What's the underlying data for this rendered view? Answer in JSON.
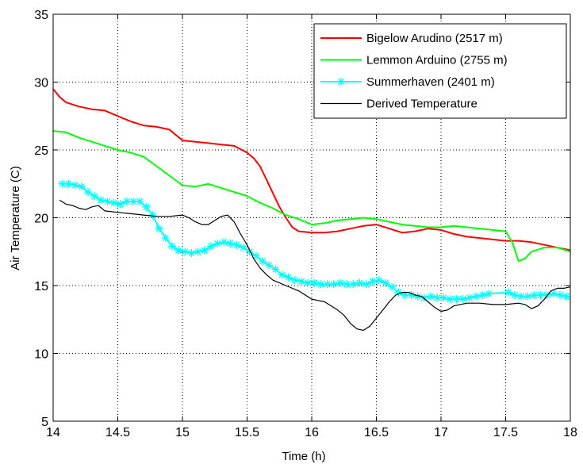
{
  "chart_data": {
    "type": "line",
    "xlabel": "Time (h)",
    "ylabel": "Air Temperature (C)",
    "xlim": [
      14,
      18
    ],
    "ylim": [
      5,
      35
    ],
    "x_ticks": [
      14,
      14.5,
      15,
      15.5,
      16,
      16.5,
      17,
      17.5,
      18
    ],
    "y_ticks": [
      5,
      10,
      15,
      20,
      25,
      30,
      35
    ],
    "grid": true,
    "legend_position": "top-right",
    "series": [
      {
        "name": "Bigelow Arudino (2517 m)",
        "color": "#ff0000",
        "marker": "none",
        "x": [
          14.0,
          14.05,
          14.1,
          14.2,
          14.3,
          14.4,
          14.5,
          14.6,
          14.7,
          14.8,
          14.9,
          14.95,
          15.0,
          15.1,
          15.2,
          15.3,
          15.4,
          15.5,
          15.55,
          15.6,
          15.65,
          15.7,
          15.75,
          15.8,
          15.85,
          15.9,
          16.0,
          16.1,
          16.2,
          16.3,
          16.4,
          16.5,
          16.6,
          16.7,
          16.8,
          16.9,
          17.0,
          17.1,
          17.2,
          17.3,
          17.4,
          17.5,
          17.6,
          17.7,
          17.8,
          17.9,
          18.0
        ],
        "y": [
          29.5,
          28.9,
          28.5,
          28.2,
          28.0,
          27.9,
          27.5,
          27.1,
          26.8,
          26.7,
          26.5,
          26.1,
          25.7,
          25.6,
          25.5,
          25.4,
          25.3,
          24.8,
          24.4,
          23.8,
          22.8,
          21.8,
          20.8,
          20.0,
          19.3,
          19.0,
          18.9,
          18.9,
          19.0,
          19.2,
          19.4,
          19.5,
          19.2,
          18.9,
          19.0,
          19.2,
          19.1,
          18.8,
          18.6,
          18.5,
          18.4,
          18.3,
          18.3,
          18.2,
          18.0,
          17.8,
          17.6
        ]
      },
      {
        "name": "Lemmon Arduino (2755 m)",
        "color": "#00ff00",
        "marker": "none",
        "x": [
          14.0,
          14.1,
          14.2,
          14.3,
          14.4,
          14.5,
          14.6,
          14.7,
          14.8,
          14.9,
          15.0,
          15.1,
          15.2,
          15.3,
          15.4,
          15.5,
          15.6,
          15.7,
          15.8,
          15.9,
          16.0,
          16.1,
          16.2,
          16.3,
          16.4,
          16.5,
          16.6,
          16.7,
          16.8,
          16.9,
          17.0,
          17.1,
          17.2,
          17.3,
          17.4,
          17.5,
          17.55,
          17.6,
          17.65,
          17.7,
          17.8,
          17.9,
          18.0
        ],
        "y": [
          26.4,
          26.3,
          25.9,
          25.6,
          25.3,
          25.0,
          24.8,
          24.5,
          23.8,
          23.1,
          22.4,
          22.3,
          22.5,
          22.2,
          21.9,
          21.6,
          21.1,
          20.7,
          20.2,
          19.9,
          19.5,
          19.6,
          19.8,
          19.9,
          20.0,
          19.9,
          19.7,
          19.5,
          19.4,
          19.3,
          19.3,
          19.4,
          19.3,
          19.2,
          19.1,
          19.0,
          18.2,
          16.8,
          17.0,
          17.5,
          17.8,
          17.8,
          17.5
        ]
      },
      {
        "name": "Summerhaven (2401 m)",
        "color": "#00ffff",
        "marker": "*",
        "x": [
          14.07,
          14.12,
          14.17,
          14.22,
          14.27,
          14.32,
          14.37,
          14.42,
          14.47,
          14.52,
          14.57,
          14.62,
          14.67,
          14.72,
          14.77,
          14.82,
          14.87,
          14.92,
          14.97,
          15.02,
          15.07,
          15.12,
          15.17,
          15.22,
          15.27,
          15.32,
          15.37,
          15.42,
          15.47,
          15.52,
          15.57,
          15.62,
          15.67,
          15.72,
          15.77,
          15.82,
          15.87,
          15.92,
          15.97,
          16.02,
          16.07,
          16.12,
          16.17,
          16.22,
          16.27,
          16.32,
          16.37,
          16.42,
          16.47,
          16.52,
          16.57,
          16.62,
          16.67,
          16.72,
          16.77,
          16.82,
          16.87,
          16.92,
          16.97,
          17.02,
          17.07,
          17.12,
          17.17,
          17.22,
          17.27,
          17.32,
          17.37,
          17.52,
          17.57,
          17.62,
          17.67,
          17.72,
          17.77,
          17.82,
          17.87,
          17.92,
          17.97
        ],
        "y": [
          22.5,
          22.5,
          22.4,
          22.3,
          21.9,
          21.6,
          21.3,
          21.2,
          21.1,
          21.0,
          21.2,
          21.2,
          21.2,
          20.8,
          20.2,
          19.2,
          18.5,
          17.9,
          17.6,
          17.5,
          17.4,
          17.5,
          17.6,
          17.9,
          18.1,
          18.2,
          18.1,
          18.0,
          17.8,
          17.5,
          17.2,
          16.8,
          16.5,
          16.2,
          15.8,
          15.6,
          15.4,
          15.3,
          15.2,
          15.2,
          15.1,
          15.1,
          15.1,
          15.2,
          15.1,
          15.1,
          15.2,
          15.1,
          15.3,
          15.4,
          15.2,
          14.9,
          14.5,
          14.3,
          14.3,
          14.2,
          14.1,
          14.2,
          14.1,
          14.1,
          14.0,
          14.0,
          14.0,
          14.1,
          14.2,
          14.3,
          14.4,
          14.5,
          14.3,
          14.2,
          14.2,
          14.3,
          14.3,
          14.3,
          14.4,
          14.3,
          14.2
        ]
      },
      {
        "name": "Derived Temperature",
        "color": "#000000",
        "marker": "none",
        "x": [
          14.05,
          14.1,
          14.15,
          14.2,
          14.25,
          14.3,
          14.35,
          14.4,
          14.5,
          14.6,
          14.7,
          14.8,
          14.9,
          15.0,
          15.05,
          15.1,
          15.15,
          15.2,
          15.25,
          15.3,
          15.35,
          15.4,
          15.45,
          15.5,
          15.55,
          15.6,
          15.65,
          15.7,
          15.8,
          15.9,
          16.0,
          16.05,
          16.1,
          16.15,
          16.2,
          16.25,
          16.3,
          16.35,
          16.4,
          16.45,
          16.5,
          16.55,
          16.6,
          16.65,
          16.7,
          16.75,
          16.8,
          16.85,
          16.9,
          16.95,
          17.0,
          17.05,
          17.1,
          17.15,
          17.2,
          17.3,
          17.4,
          17.5,
          17.6,
          17.65,
          17.7,
          17.75,
          17.8,
          17.85,
          17.9,
          17.95,
          18.0
        ],
        "y": [
          21.3,
          21.0,
          20.9,
          20.7,
          20.6,
          20.8,
          20.9,
          20.5,
          20.4,
          20.3,
          20.2,
          20.1,
          20.1,
          20.2,
          20.0,
          19.7,
          19.5,
          19.5,
          19.8,
          20.1,
          20.2,
          19.7,
          18.8,
          18.0,
          17.0,
          16.3,
          15.8,
          15.4,
          15.0,
          14.6,
          14.0,
          13.9,
          13.8,
          13.5,
          13.2,
          12.8,
          12.2,
          11.8,
          11.7,
          12.0,
          12.6,
          13.2,
          13.8,
          14.3,
          14.5,
          14.5,
          14.3,
          14.2,
          13.8,
          13.4,
          13.1,
          13.2,
          13.5,
          13.6,
          13.7,
          13.7,
          13.6,
          13.6,
          13.7,
          13.6,
          13.3,
          13.5,
          14.0,
          14.6,
          14.8,
          14.8,
          14.9
        ]
      }
    ]
  }
}
